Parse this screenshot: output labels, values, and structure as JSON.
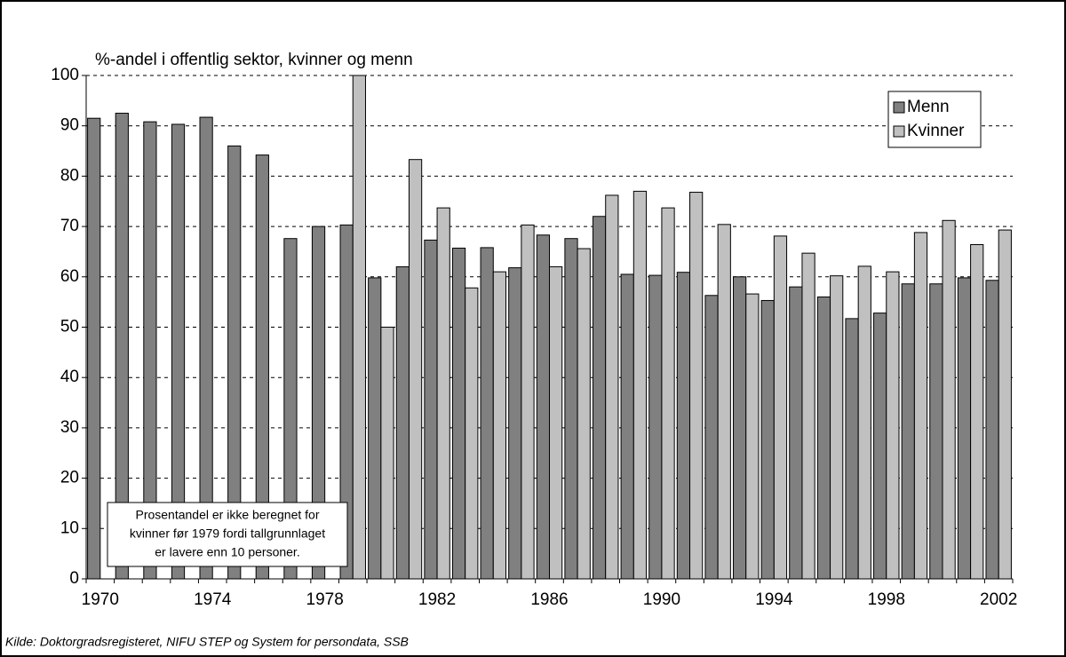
{
  "chart_data": {
    "type": "bar",
    "title": "%-andel i offentlig sektor, kvinner og menn",
    "source": "Kilde: Doktorgradsregisteret, NIFU STEP og System for persondata, SSB",
    "annotation": [
      "Prosentandel er ikke beregnet for",
      "kvinner før 1979 fordi tallgrunnlaget",
      "er lavere enn 10 personer."
    ],
    "categories": [
      "1970",
      null,
      null,
      null,
      "1974",
      null,
      null,
      null,
      "1978",
      null,
      null,
      null,
      "1982",
      null,
      null,
      null,
      "1986",
      null,
      null,
      null,
      "1990",
      null,
      null,
      null,
      "1994",
      null,
      null,
      null,
      "1998",
      null,
      null,
      null,
      "2002"
    ],
    "series": [
      {
        "name": "Menn",
        "color": "#808080",
        "values": [
          91.5,
          92.5,
          90.8,
          90.3,
          91.7,
          86,
          84.2,
          67.6,
          70,
          70.3,
          59.8,
          62,
          67.3,
          65.7,
          65.8,
          61.8,
          68.3,
          67.6,
          72,
          60.5,
          60.3,
          60.9,
          56.3,
          60,
          55.3,
          58,
          56,
          51.7,
          52.8,
          58.6,
          58.6,
          59.8,
          59.3
        ]
      },
      {
        "name": "Kvinner",
        "color": "#c0c0c0",
        "values": [
          null,
          null,
          null,
          null,
          null,
          null,
          null,
          null,
          null,
          100,
          50,
          83.3,
          73.7,
          57.8,
          61,
          70.3,
          62,
          65.6,
          76.2,
          77,
          73.7,
          76.8,
          70.4,
          56.6,
          68.1,
          64.7,
          60.2,
          62.1,
          61,
          68.8,
          71.2,
          66.4,
          69.3
        ]
      }
    ],
    "ylim": [
      0,
      100
    ],
    "yticks": [
      0,
      10,
      20,
      30,
      40,
      50,
      60,
      70,
      80,
      90,
      100
    ],
    "grid": true,
    "legend": "top-right"
  }
}
